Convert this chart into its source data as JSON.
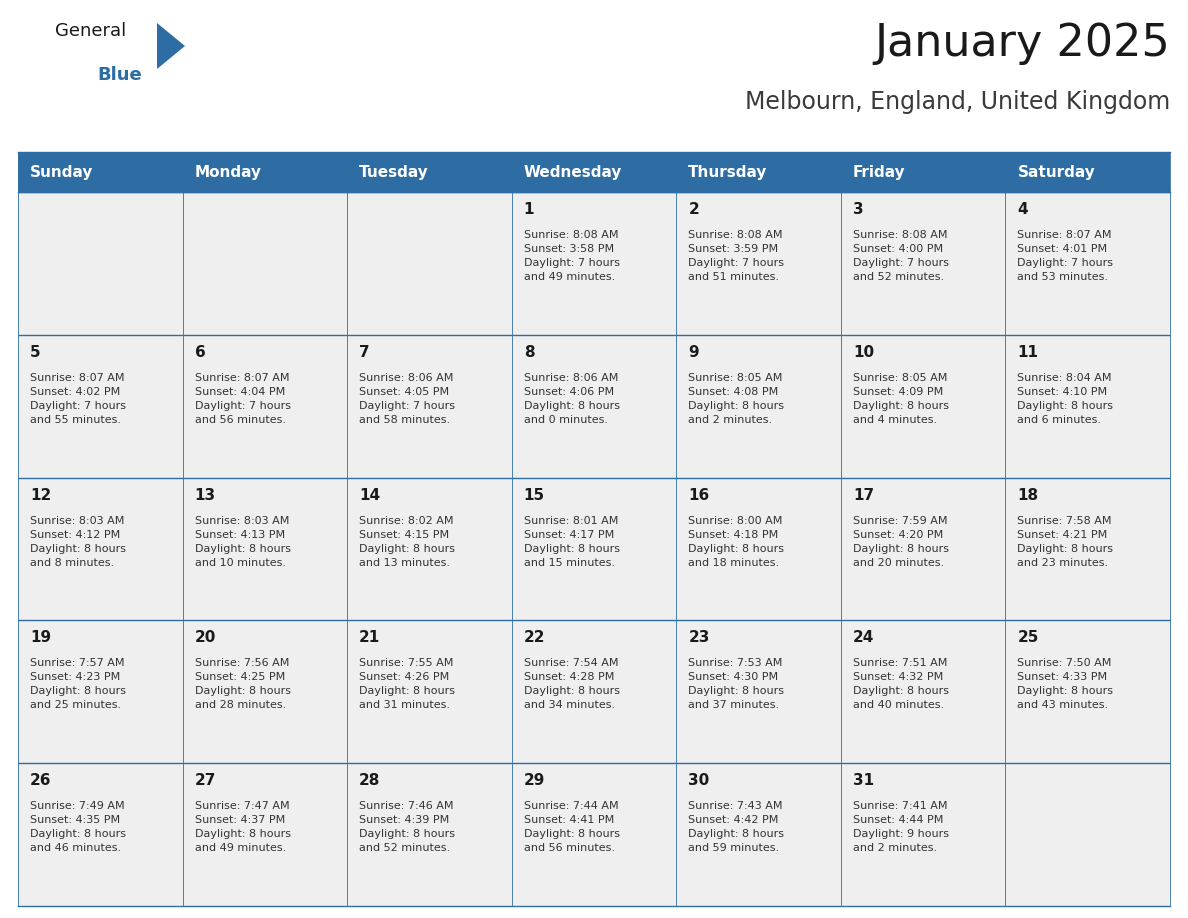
{
  "title": "January 2025",
  "subtitle": "Melbourn, England, United Kingdom",
  "header_bg": "#2E6DA4",
  "header_text": "#FFFFFF",
  "cell_bg": "#EFEFEF",
  "grid_line_color": "#2E6DA4",
  "text_dark": "#1A1A1A",
  "text_info": "#333333",
  "day_names": [
    "Sunday",
    "Monday",
    "Tuesday",
    "Wednesday",
    "Thursday",
    "Friday",
    "Saturday"
  ],
  "weeks": [
    [
      {
        "day": "",
        "info": ""
      },
      {
        "day": "",
        "info": ""
      },
      {
        "day": "",
        "info": ""
      },
      {
        "day": "1",
        "info": "Sunrise: 8:08 AM\nSunset: 3:58 PM\nDaylight: 7 hours\nand 49 minutes."
      },
      {
        "day": "2",
        "info": "Sunrise: 8:08 AM\nSunset: 3:59 PM\nDaylight: 7 hours\nand 51 minutes."
      },
      {
        "day": "3",
        "info": "Sunrise: 8:08 AM\nSunset: 4:00 PM\nDaylight: 7 hours\nand 52 minutes."
      },
      {
        "day": "4",
        "info": "Sunrise: 8:07 AM\nSunset: 4:01 PM\nDaylight: 7 hours\nand 53 minutes."
      }
    ],
    [
      {
        "day": "5",
        "info": "Sunrise: 8:07 AM\nSunset: 4:02 PM\nDaylight: 7 hours\nand 55 minutes."
      },
      {
        "day": "6",
        "info": "Sunrise: 8:07 AM\nSunset: 4:04 PM\nDaylight: 7 hours\nand 56 minutes."
      },
      {
        "day": "7",
        "info": "Sunrise: 8:06 AM\nSunset: 4:05 PM\nDaylight: 7 hours\nand 58 minutes."
      },
      {
        "day": "8",
        "info": "Sunrise: 8:06 AM\nSunset: 4:06 PM\nDaylight: 8 hours\nand 0 minutes."
      },
      {
        "day": "9",
        "info": "Sunrise: 8:05 AM\nSunset: 4:08 PM\nDaylight: 8 hours\nand 2 minutes."
      },
      {
        "day": "10",
        "info": "Sunrise: 8:05 AM\nSunset: 4:09 PM\nDaylight: 8 hours\nand 4 minutes."
      },
      {
        "day": "11",
        "info": "Sunrise: 8:04 AM\nSunset: 4:10 PM\nDaylight: 8 hours\nand 6 minutes."
      }
    ],
    [
      {
        "day": "12",
        "info": "Sunrise: 8:03 AM\nSunset: 4:12 PM\nDaylight: 8 hours\nand 8 minutes."
      },
      {
        "day": "13",
        "info": "Sunrise: 8:03 AM\nSunset: 4:13 PM\nDaylight: 8 hours\nand 10 minutes."
      },
      {
        "day": "14",
        "info": "Sunrise: 8:02 AM\nSunset: 4:15 PM\nDaylight: 8 hours\nand 13 minutes."
      },
      {
        "day": "15",
        "info": "Sunrise: 8:01 AM\nSunset: 4:17 PM\nDaylight: 8 hours\nand 15 minutes."
      },
      {
        "day": "16",
        "info": "Sunrise: 8:00 AM\nSunset: 4:18 PM\nDaylight: 8 hours\nand 18 minutes."
      },
      {
        "day": "17",
        "info": "Sunrise: 7:59 AM\nSunset: 4:20 PM\nDaylight: 8 hours\nand 20 minutes."
      },
      {
        "day": "18",
        "info": "Sunrise: 7:58 AM\nSunset: 4:21 PM\nDaylight: 8 hours\nand 23 minutes."
      }
    ],
    [
      {
        "day": "19",
        "info": "Sunrise: 7:57 AM\nSunset: 4:23 PM\nDaylight: 8 hours\nand 25 minutes."
      },
      {
        "day": "20",
        "info": "Sunrise: 7:56 AM\nSunset: 4:25 PM\nDaylight: 8 hours\nand 28 minutes."
      },
      {
        "day": "21",
        "info": "Sunrise: 7:55 AM\nSunset: 4:26 PM\nDaylight: 8 hours\nand 31 minutes."
      },
      {
        "day": "22",
        "info": "Sunrise: 7:54 AM\nSunset: 4:28 PM\nDaylight: 8 hours\nand 34 minutes."
      },
      {
        "day": "23",
        "info": "Sunrise: 7:53 AM\nSunset: 4:30 PM\nDaylight: 8 hours\nand 37 minutes."
      },
      {
        "day": "24",
        "info": "Sunrise: 7:51 AM\nSunset: 4:32 PM\nDaylight: 8 hours\nand 40 minutes."
      },
      {
        "day": "25",
        "info": "Sunrise: 7:50 AM\nSunset: 4:33 PM\nDaylight: 8 hours\nand 43 minutes."
      }
    ],
    [
      {
        "day": "26",
        "info": "Sunrise: 7:49 AM\nSunset: 4:35 PM\nDaylight: 8 hours\nand 46 minutes."
      },
      {
        "day": "27",
        "info": "Sunrise: 7:47 AM\nSunset: 4:37 PM\nDaylight: 8 hours\nand 49 minutes."
      },
      {
        "day": "28",
        "info": "Sunrise: 7:46 AM\nSunset: 4:39 PM\nDaylight: 8 hours\nand 52 minutes."
      },
      {
        "day": "29",
        "info": "Sunrise: 7:44 AM\nSunset: 4:41 PM\nDaylight: 8 hours\nand 56 minutes."
      },
      {
        "day": "30",
        "info": "Sunrise: 7:43 AM\nSunset: 4:42 PM\nDaylight: 8 hours\nand 59 minutes."
      },
      {
        "day": "31",
        "info": "Sunrise: 7:41 AM\nSunset: 4:44 PM\nDaylight: 9 hours\nand 2 minutes."
      },
      {
        "day": "",
        "info": ""
      }
    ]
  ],
  "fig_width": 11.88,
  "fig_height": 9.18,
  "dpi": 100,
  "title_fontsize": 32,
  "subtitle_fontsize": 17,
  "dayname_fontsize": 11,
  "daynum_fontsize": 11,
  "info_fontsize": 8
}
